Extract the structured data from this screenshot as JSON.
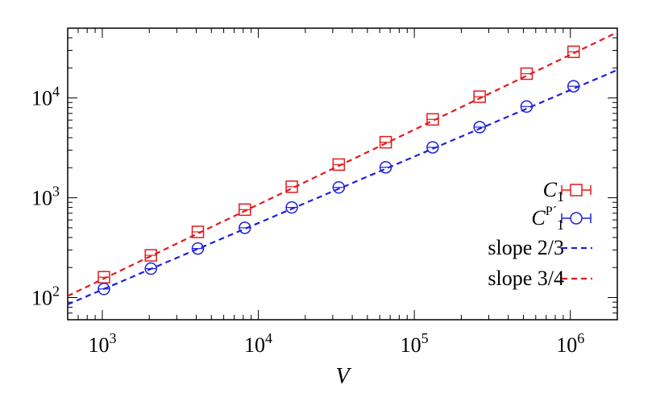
{
  "chart_data": {
    "type": "scatter",
    "title": "",
    "xlabel": "V",
    "ylabel": "",
    "xscale": "log",
    "yscale": "log",
    "xlim": [
      600,
      2000000
    ],
    "ylim": [
      60,
      50000
    ],
    "x_ticks": [
      {
        "base": "10",
        "exp": "3",
        "value": 1000
      },
      {
        "base": "10",
        "exp": "4",
        "value": 10000
      },
      {
        "base": "10",
        "exp": "5",
        "value": 100000
      },
      {
        "base": "10",
        "exp": "6",
        "value": 1000000
      }
    ],
    "y_ticks": [
      {
        "base": "10",
        "exp": "2",
        "value": 100
      },
      {
        "base": "10",
        "exp": "3",
        "value": 1000
      },
      {
        "base": "10",
        "exp": "4",
        "value": 10000
      }
    ],
    "legend_position": "bottom-right",
    "grid": false,
    "series": [
      {
        "name": "C1",
        "label_main": "C",
        "label_sub": "1",
        "marker": "square",
        "color": "#e41a1c",
        "x": [
          1024,
          2048,
          4096,
          8192,
          16384,
          32768,
          65536,
          131072,
          262144,
          524288,
          1048576
        ],
        "y": [
          160,
          265,
          455,
          760,
          1290,
          2150,
          3600,
          6100,
          10300,
          17500,
          29000
        ]
      },
      {
        "name": "CP'1",
        "label_main": "C",
        "label_sup": "P´",
        "label_sub": "1",
        "marker": "circle",
        "color": "#1f1fe0",
        "x": [
          1024,
          2048,
          4096,
          8192,
          16384,
          32768,
          65536,
          131072,
          262144,
          524288,
          1048576
        ],
        "y": [
          122,
          195,
          310,
          500,
          800,
          1270,
          2020,
          3200,
          5100,
          8200,
          13100
        ]
      }
    ],
    "fit_lines": [
      {
        "name": "slope 2/3",
        "slope": 0.6667,
        "x0": 1024,
        "y0": 122,
        "color": "#1f1fe0",
        "dash": true
      },
      {
        "name": "slope 3/4",
        "slope": 0.75,
        "x0": 1024,
        "y0": 155,
        "color": "#e41a1c",
        "dash": true
      }
    ]
  }
}
